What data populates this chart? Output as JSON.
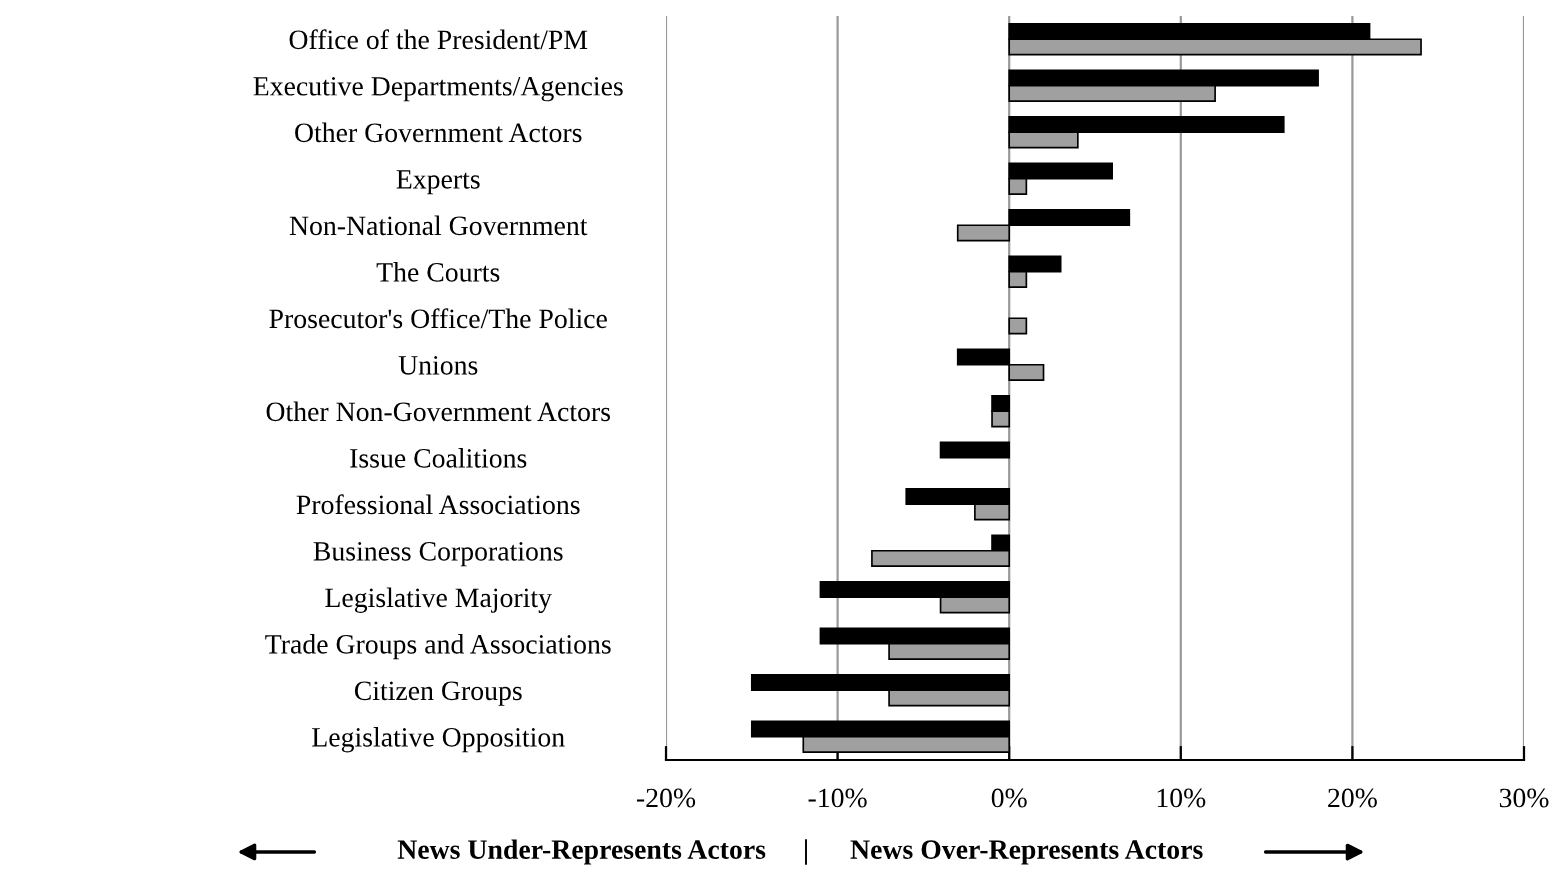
{
  "chart_data": {
    "type": "bar",
    "orientation": "horizontal",
    "categories": [
      "Office of the President/PM",
      "Executive Departments/Agencies",
      "Other Government Actors",
      "Experts",
      "Non-National Government",
      "The Courts",
      "Prosecutor's Office/The Police",
      "Unions",
      "Other Non-Government Actors",
      "Issue Coalitions",
      "Professional Associations",
      "Business Corporations",
      "Legislative Majority",
      "Trade Groups and Associations",
      "Citizen Groups",
      "Legislative Opposition"
    ],
    "series": [
      {
        "color": "#000000",
        "values": [
          21,
          18,
          16,
          6,
          7,
          3,
          0,
          -3,
          -1,
          -4,
          -6,
          -1,
          -11,
          -11,
          -15,
          -15
        ]
      },
      {
        "color": "#a0a0a0",
        "values": [
          24,
          12,
          4,
          1,
          -3,
          1,
          1,
          2,
          -1,
          0,
          -2,
          -8,
          -4,
          -7,
          -7,
          -12
        ]
      }
    ],
    "xlim": [
      -20,
      30
    ],
    "xticks": [
      {
        "value": -20,
        "label": "-20%"
      },
      {
        "value": -10,
        "label": "-10%"
      },
      {
        "value": 0,
        "label": "0%"
      },
      {
        "value": 10,
        "label": "10%"
      },
      {
        "value": 20,
        "label": "20%"
      },
      {
        "value": 30,
        "label": "30%"
      }
    ],
    "grid": "x",
    "annotations": [
      "News Under-Represents Actors",
      "|",
      "News Over-Represents Actors"
    ]
  }
}
